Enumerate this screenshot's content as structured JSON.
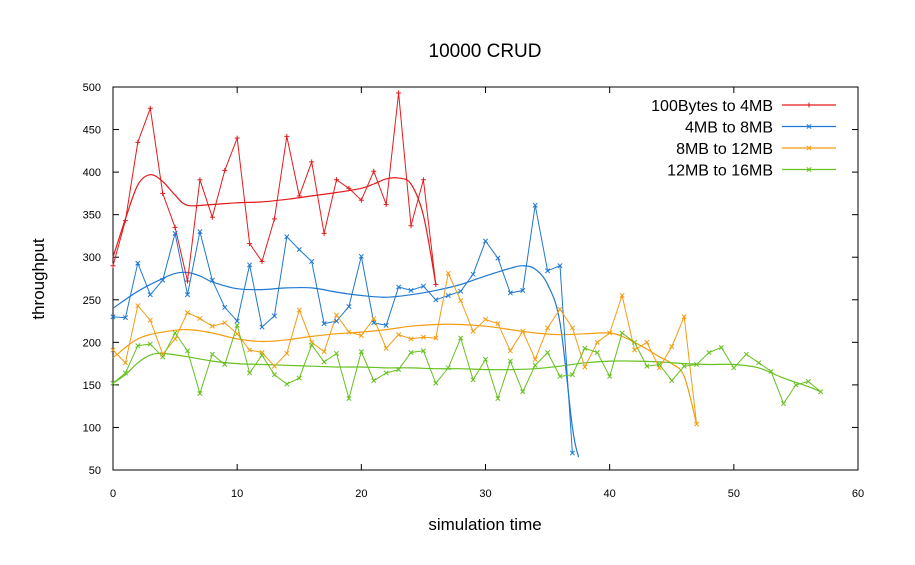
{
  "chart_data": {
    "type": "line",
    "title": "10000 CRUD",
    "xlabel": "simulation time",
    "ylabel": "throughput",
    "xlim": [
      0,
      60
    ],
    "ylim": [
      50,
      500
    ],
    "xticks": [
      "0",
      "10",
      "20",
      "30",
      "40",
      "50",
      "60"
    ],
    "yticks": [
      "50",
      "100",
      "150",
      "200",
      "250",
      "300",
      "350",
      "400",
      "450",
      "500"
    ],
    "grid": false,
    "legend_position": "top-right",
    "series": [
      {
        "name": "100Bytes to 4MB",
        "color": "#e41a1c",
        "marker": "plus",
        "x": [
          0,
          1,
          2,
          3,
          4,
          5,
          6,
          7,
          8,
          9,
          10,
          11,
          12,
          13,
          14,
          15,
          16,
          17,
          18,
          19,
          20,
          21,
          22,
          23,
          24,
          25,
          26
        ],
        "y": [
          290,
          343,
          435,
          475,
          375,
          335,
          272,
          391,
          347,
          402,
          440,
          316,
          295,
          345,
          442,
          372,
          412,
          328,
          391,
          381,
          367,
          401,
          362,
          493,
          337,
          391,
          268
        ],
        "trend": [
          [
            0,
            300
          ],
          [
            1,
            345
          ],
          [
            2,
            385
          ],
          [
            3,
            397
          ],
          [
            4,
            389
          ],
          [
            5,
            373
          ],
          [
            6,
            361
          ],
          [
            8,
            362
          ],
          [
            10,
            364
          ],
          [
            12,
            365
          ],
          [
            14,
            368
          ],
          [
            16,
            372
          ],
          [
            18,
            376
          ],
          [
            20,
            381
          ],
          [
            21,
            386
          ],
          [
            22,
            392
          ],
          [
            23,
            393
          ],
          [
            24,
            386
          ],
          [
            25,
            349
          ],
          [
            26,
            268
          ]
        ]
      },
      {
        "name": "4MB to 8MB",
        "color": "#1f78d1",
        "marker": "x",
        "x": [
          0,
          1,
          2,
          3,
          4,
          5,
          6,
          7,
          8,
          9,
          10,
          11,
          12,
          13,
          14,
          15,
          16,
          17,
          18,
          19,
          20,
          21,
          22,
          23,
          24,
          25,
          26,
          27,
          28,
          29,
          30,
          31,
          32,
          33,
          34,
          35,
          36,
          37
        ],
        "y": [
          230,
          229,
          293,
          256,
          273,
          328,
          256,
          330,
          273,
          241,
          225,
          291,
          218,
          231,
          324,
          309,
          295,
          222,
          225,
          242,
          301,
          223,
          220,
          265,
          261,
          266,
          250,
          255,
          260,
          280,
          319,
          299,
          258,
          261,
          361,
          284,
          290,
          70
        ],
        "trend": [
          [
            0,
            240
          ],
          [
            2,
            260
          ],
          [
            4,
            275
          ],
          [
            5,
            281
          ],
          [
            6,
            282
          ],
          [
            7,
            278
          ],
          [
            8,
            271
          ],
          [
            10,
            263
          ],
          [
            12,
            262
          ],
          [
            14,
            264
          ],
          [
            16,
            264
          ],
          [
            18,
            259
          ],
          [
            20,
            255
          ],
          [
            22,
            253
          ],
          [
            24,
            256
          ],
          [
            26,
            261
          ],
          [
            28,
            268
          ],
          [
            30,
            278
          ],
          [
            32,
            287
          ],
          [
            33,
            290
          ],
          [
            34,
            286
          ],
          [
            35,
            268
          ],
          [
            36,
            223
          ],
          [
            37,
            100
          ],
          [
            37.5,
            65
          ]
        ]
      },
      {
        "name": "8MB to 12MB",
        "color": "#f39c12",
        "marker": "x",
        "x": [
          0,
          1,
          2,
          3,
          4,
          5,
          6,
          7,
          8,
          9,
          10,
          11,
          12,
          13,
          14,
          15,
          16,
          17,
          18,
          19,
          20,
          21,
          22,
          23,
          24,
          25,
          26,
          27,
          28,
          29,
          30,
          31,
          32,
          33,
          34,
          35,
          36,
          37,
          38,
          39,
          40,
          41,
          42,
          43,
          44,
          45,
          46,
          47
        ],
        "y": [
          191,
          176,
          243,
          226,
          186,
          204,
          235,
          228,
          219,
          223,
          210,
          191,
          188,
          172,
          187,
          238,
          200,
          189,
          232,
          212,
          208,
          228,
          193,
          209,
          204,
          206,
          205,
          281,
          249,
          213,
          227,
          222,
          190,
          213,
          180,
          217,
          239,
          217,
          171,
          200,
          211,
          255,
          191,
          200,
          170,
          195,
          230,
          104
        ],
        "trend": [
          [
            0,
            182
          ],
          [
            2,
            204
          ],
          [
            4,
            212
          ],
          [
            6,
            215
          ],
          [
            8,
            211
          ],
          [
            10,
            204
          ],
          [
            12,
            201
          ],
          [
            14,
            203
          ],
          [
            16,
            207
          ],
          [
            18,
            210
          ],
          [
            20,
            212
          ],
          [
            22,
            215
          ],
          [
            24,
            219
          ],
          [
            26,
            221
          ],
          [
            28,
            221
          ],
          [
            30,
            219
          ],
          [
            32,
            215
          ],
          [
            34,
            211
          ],
          [
            36,
            209
          ],
          [
            38,
            210
          ],
          [
            40,
            211
          ],
          [
            41,
            207
          ],
          [
            42,
            200
          ],
          [
            43,
            192
          ],
          [
            44,
            183
          ],
          [
            45,
            175
          ],
          [
            46,
            160
          ],
          [
            47,
            104
          ]
        ]
      },
      {
        "name": "12MB to 16MB",
        "color": "#66c01e",
        "marker": "x",
        "x": [
          0,
          1,
          2,
          3,
          4,
          5,
          6,
          7,
          8,
          9,
          10,
          11,
          12,
          13,
          14,
          15,
          16,
          17,
          18,
          19,
          20,
          21,
          22,
          23,
          24,
          25,
          26,
          27,
          28,
          29,
          30,
          31,
          32,
          33,
          34,
          35,
          36,
          37,
          38,
          39,
          40,
          41,
          42,
          43,
          44,
          45,
          46,
          47,
          48,
          49,
          50,
          51,
          52,
          53,
          54,
          55,
          56,
          57
        ],
        "y": [
          152,
          164,
          196,
          198,
          183,
          211,
          190,
          140,
          186,
          174,
          220,
          164,
          185,
          162,
          151,
          158,
          197,
          177,
          187,
          134,
          189,
          155,
          164,
          168,
          188,
          190,
          152,
          170,
          205,
          156,
          180,
          134,
          178,
          142,
          173,
          188,
          160,
          162,
          193,
          188,
          160,
          211,
          200,
          172,
          174,
          155,
          172,
          174,
          188,
          194,
          170,
          186,
          176,
          166,
          128,
          150,
          154,
          142
        ],
        "trend": [
          [
            0,
            152
          ],
          [
            1,
            162
          ],
          [
            2,
            176
          ],
          [
            3,
            185
          ],
          [
            4,
            187
          ],
          [
            6,
            183
          ],
          [
            8,
            178
          ],
          [
            10,
            175
          ],
          [
            12,
            174
          ],
          [
            14,
            173
          ],
          [
            16,
            172
          ],
          [
            18,
            171
          ],
          [
            20,
            171
          ],
          [
            22,
            170
          ],
          [
            24,
            170
          ],
          [
            26,
            169
          ],
          [
            28,
            169
          ],
          [
            30,
            168
          ],
          [
            32,
            168
          ],
          [
            34,
            169
          ],
          [
            36,
            172
          ],
          [
            38,
            176
          ],
          [
            40,
            178
          ],
          [
            42,
            178
          ],
          [
            44,
            177
          ],
          [
            46,
            175
          ],
          [
            48,
            174
          ],
          [
            50,
            174
          ],
          [
            52,
            170
          ],
          [
            54,
            158
          ],
          [
            56,
            148
          ],
          [
            57,
            142
          ]
        ]
      }
    ]
  }
}
